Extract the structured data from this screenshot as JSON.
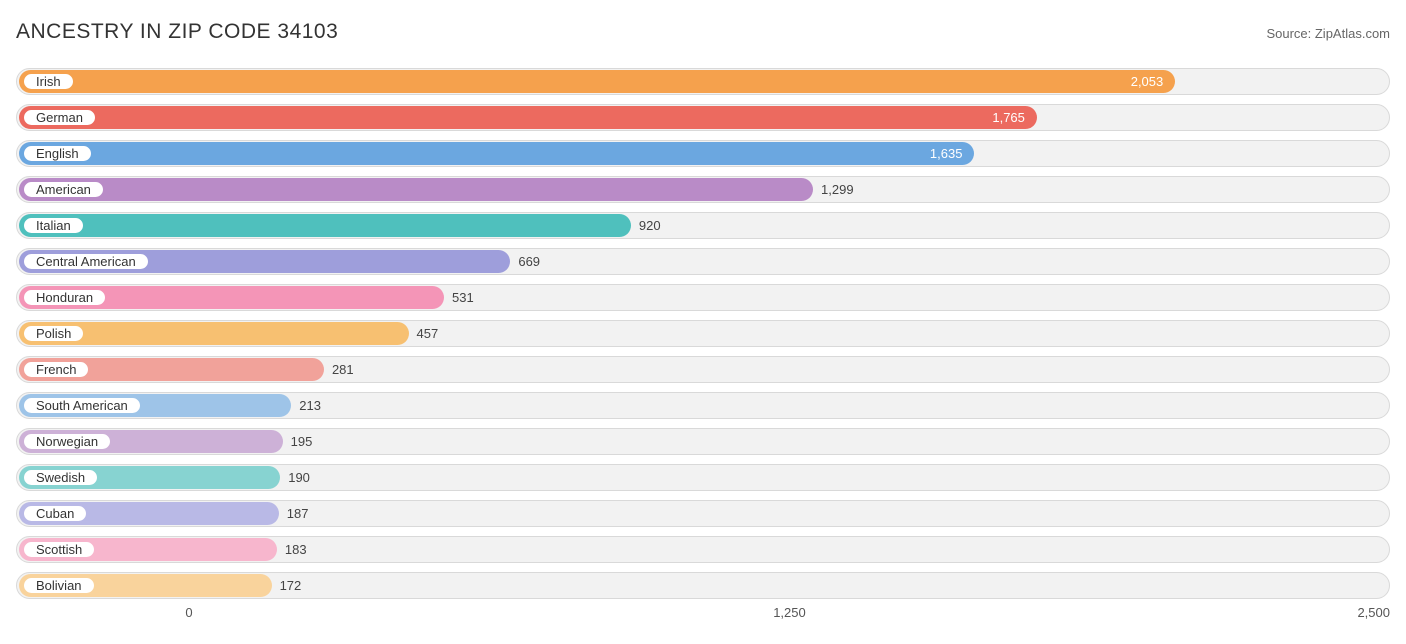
{
  "title": "ANCESTRY IN ZIP CODE 34103",
  "source": "Source: ZipAtlas.com",
  "chart": {
    "type": "bar-horizontal",
    "x_min": -360,
    "x_max": 2500,
    "axis_ticks": [
      {
        "value": 0,
        "label": "0"
      },
      {
        "value": 1250,
        "label": "1,250"
      },
      {
        "value": 2500,
        "label": "2,500"
      }
    ],
    "track_bg": "#f2f2f2",
    "track_border": "#d9d9d9",
    "label_text_color": "#333333",
    "value_inside_color": "#ffffff",
    "value_outside_color": "#444444",
    "rows": [
      {
        "label": "Irish",
        "value": 2053,
        "display": "2,053",
        "color": "#f5a14d",
        "value_inside": true
      },
      {
        "label": "German",
        "value": 1765,
        "display": "1,765",
        "color": "#ec6a5f",
        "value_inside": true
      },
      {
        "label": "English",
        "value": 1635,
        "display": "1,635",
        "color": "#6ba7e0",
        "value_inside": true
      },
      {
        "label": "American",
        "value": 1299,
        "display": "1,299",
        "color": "#b98bc7",
        "value_inside": false
      },
      {
        "label": "Italian",
        "value": 920,
        "display": "920",
        "color": "#4fc0bd",
        "value_inside": false
      },
      {
        "label": "Central American",
        "value": 669,
        "display": "669",
        "color": "#9e9edb",
        "value_inside": false
      },
      {
        "label": "Honduran",
        "value": 531,
        "display": "531",
        "color": "#f495b7",
        "value_inside": false
      },
      {
        "label": "Polish",
        "value": 457,
        "display": "457",
        "color": "#f7c071",
        "value_inside": false
      },
      {
        "label": "French",
        "value": 281,
        "display": "281",
        "color": "#f1a29a",
        "value_inside": false
      },
      {
        "label": "South American",
        "value": 213,
        "display": "213",
        "color": "#9ec4e8",
        "value_inside": false
      },
      {
        "label": "Norwegian",
        "value": 195,
        "display": "195",
        "color": "#cdb1d7",
        "value_inside": false
      },
      {
        "label": "Swedish",
        "value": 190,
        "display": "190",
        "color": "#87d3d1",
        "value_inside": false
      },
      {
        "label": "Cuban",
        "value": 187,
        "display": "187",
        "color": "#b9b9e6",
        "value_inside": false
      },
      {
        "label": "Scottish",
        "value": 183,
        "display": "183",
        "color": "#f7b6cd",
        "value_inside": false
      },
      {
        "label": "Bolivian",
        "value": 172,
        "display": "172",
        "color": "#f9d39c",
        "value_inside": false
      }
    ]
  }
}
